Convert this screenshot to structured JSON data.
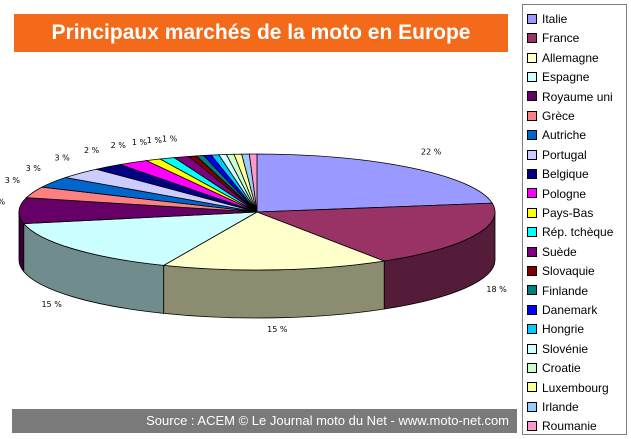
{
  "title": "Principaux marchés de la moto en Europe",
  "source": "Source : ACEM © Le Journal moto du Net - www.moto-net.com",
  "chart_data": {
    "type": "pie",
    "style": "3d-exploded-slices",
    "categories": [
      "Italie",
      "France",
      "Allemagne",
      "Espagne",
      "Royaume uni",
      "Grèce",
      "Autriche",
      "Portugal",
      "Belgique",
      "Pologne",
      "Pays-Bas",
      "Rép. tchèque",
      "Suède",
      "Slovaquie",
      "Finlande",
      "Danemark",
      "Hongrie",
      "Slovénie",
      "Croatie",
      "Luxembourg",
      "Irlande",
      "Roumanie"
    ],
    "values": [
      22,
      18,
      15,
      15,
      7,
      3,
      3,
      3,
      2,
      2,
      1,
      1,
      1,
      0.5,
      0.5,
      0.5,
      0.5,
      0.5,
      0.5,
      0.5,
      0.5,
      0.5
    ],
    "data_labels": [
      "22 %",
      "18 %",
      "15 %",
      "15 %",
      "%",
      "3 %",
      "3 %",
      "3 %",
      "2 %",
      "2 %",
      "1 %",
      "1 %",
      "1 %",
      "",
      "",
      "",
      "",
      "",
      "",
      "",
      "",
      ""
    ],
    "colors": [
      "#9999ff",
      "#993366",
      "#ffffcc",
      "#ccffff",
      "#660066",
      "#ff8080",
      "#0066cc",
      "#ccccff",
      "#000080",
      "#ff00ff",
      "#ffff00",
      "#00ffff",
      "#800080",
      "#800000",
      "#008080",
      "#0000ff",
      "#00ccff",
      "#ccffff",
      "#ccffcc",
      "#ffff99",
      "#99ccff",
      "#ff99cc"
    ],
    "legend_position": "right"
  }
}
